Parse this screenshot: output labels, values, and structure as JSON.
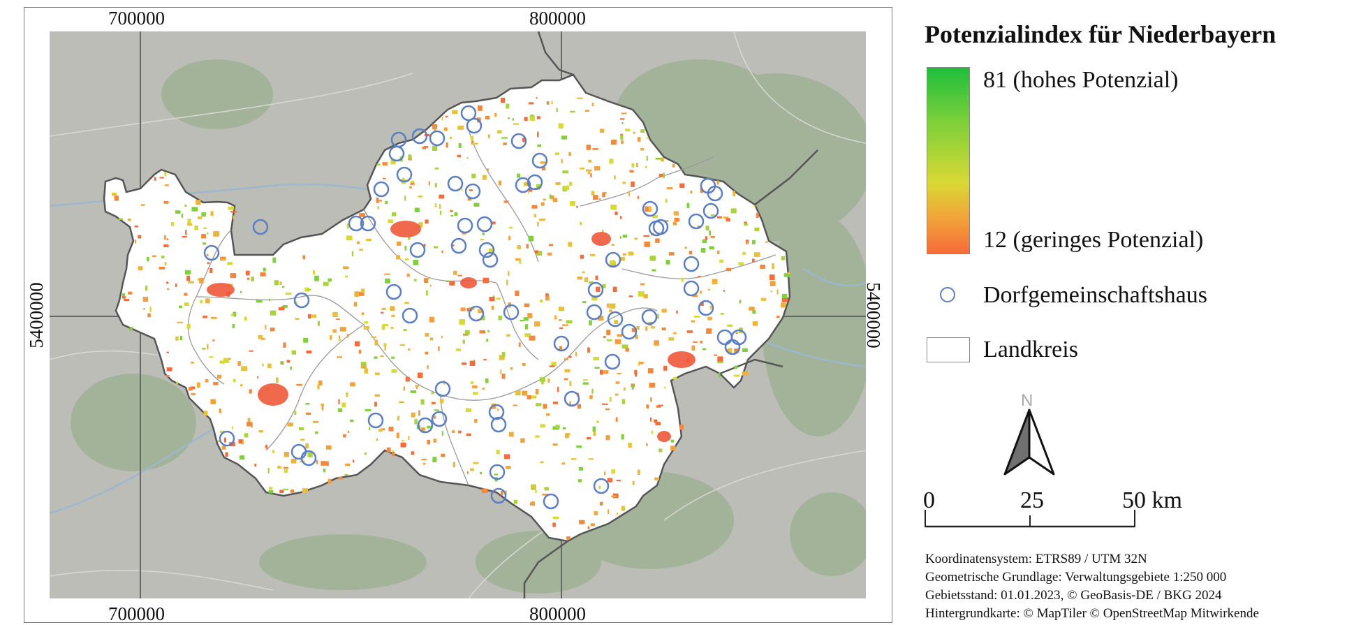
{
  "map": {
    "coords": {
      "x_label_1": "700000",
      "x_label_2": "800000",
      "y_label": "5400000"
    }
  },
  "legend": {
    "title": "Potenzialindex für Niederbayern",
    "high_label": "81 (hohes Potenzial)",
    "low_label": "12 (geringes Potenzial)",
    "point_label": "Dorfgemeinschaftshaus",
    "area_label": "Landkreis",
    "colors": {
      "high": "#1fbe3c",
      "mid": "#d9d934",
      "low": "#f56b3a",
      "marker": "#5b7fc2"
    }
  },
  "north_arrow": {
    "label": "N"
  },
  "scalebar": {
    "label_0": "0",
    "label_25": "25",
    "label_50": "50 km"
  },
  "credits": {
    "line1": "Koordinatensystem: ETRS89 / UTM 32N",
    "line2": "Geometrische Grundlage: Verwaltungsgebiete 1:250 000",
    "line3": "Gebietsstand: 01.01.2023, © GeoBasis-DE / BKG 2024",
    "line4": "Hintergrundkarte: © MapTiler © OpenStreetMap Mitwirkende"
  }
}
